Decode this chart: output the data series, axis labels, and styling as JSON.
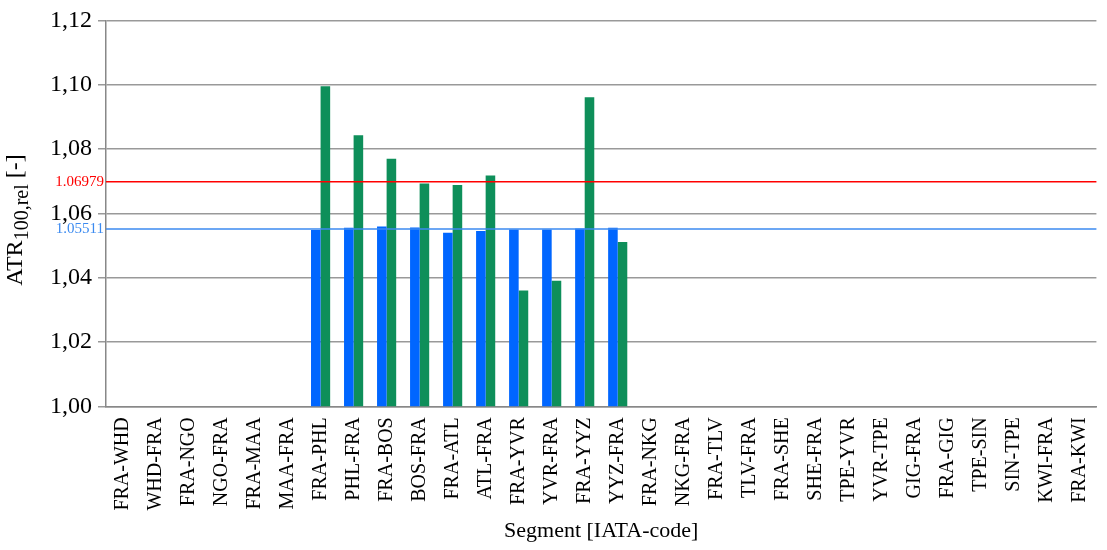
{
  "chart_data": {
    "type": "bar",
    "xlabel": "Segment [IATA-code]",
    "ylabel": "ATR$_{100,rel}$ [-]",
    "categories": [
      "FRA-WHD",
      "WHD-FRA",
      "FRA-NGO",
      "NGO-FRA",
      "FRA-MAA",
      "MAA-FRA",
      "FRA-PHL",
      "PHL-FRA",
      "FRA-BOS",
      "BOS-FRA",
      "FRA-ATL",
      "ATL-FRA",
      "FRA-YVR",
      "YVR-FRA",
      "FRA-YYZ",
      "YYZ-FRA",
      "FRA-NKG",
      "NKG-FRA",
      "FRA-TLV",
      "TLV-FRA",
      "FRA-SHE",
      "SHE-FRA",
      "TPE-YVR",
      "YVR-TPE",
      "GIG-FRA",
      "FRA-GIG",
      "TPE-SIN",
      "SIN-TPE",
      "KWI-FRA",
      "FRA-KWI"
    ],
    "series": [
      {
        "color": "#0066ff",
        "values": [
          null,
          null,
          null,
          null,
          null,
          null,
          1.0548,
          1.0555,
          1.0559,
          1.0556,
          1.054,
          1.0545,
          1.055,
          1.055,
          1.0553,
          1.0555,
          null,
          null,
          null,
          null,
          null,
          null,
          null,
          null,
          null,
          null,
          null,
          null,
          null,
          null
        ]
      },
      {
        "color": "#0e8f5a",
        "values": [
          null,
          null,
          null,
          null,
          null,
          null,
          1.0995,
          1.0843,
          1.077,
          1.0693,
          1.0688,
          1.0718,
          1.036,
          1.039,
          1.0961,
          1.0511,
          null,
          null,
          null,
          null,
          null,
          null,
          null,
          null,
          null,
          null,
          null,
          null,
          null,
          null
        ]
      }
    ],
    "ylim": [
      1.0,
      1.12
    ],
    "yticks": [
      {
        "value": 1.0,
        "label": "1,00"
      },
      {
        "value": 1.02,
        "label": "1,02"
      },
      {
        "value": 1.04,
        "label": "1,04"
      },
      {
        "value": 1.06,
        "label": "1,06"
      },
      {
        "value": 1.08,
        "label": "1,08"
      },
      {
        "value": 1.1,
        "label": "1,10"
      },
      {
        "value": 1.12,
        "label": "1,12"
      }
    ],
    "ref_lines": [
      {
        "axis": "y",
        "value": 1.06979,
        "label": "1.06979",
        "color": "#ff0000"
      },
      {
        "axis": "y",
        "value": 1.05511,
        "label": "1.05511",
        "color": "#3b8af0"
      }
    ],
    "grid": "y",
    "legend": false
  }
}
